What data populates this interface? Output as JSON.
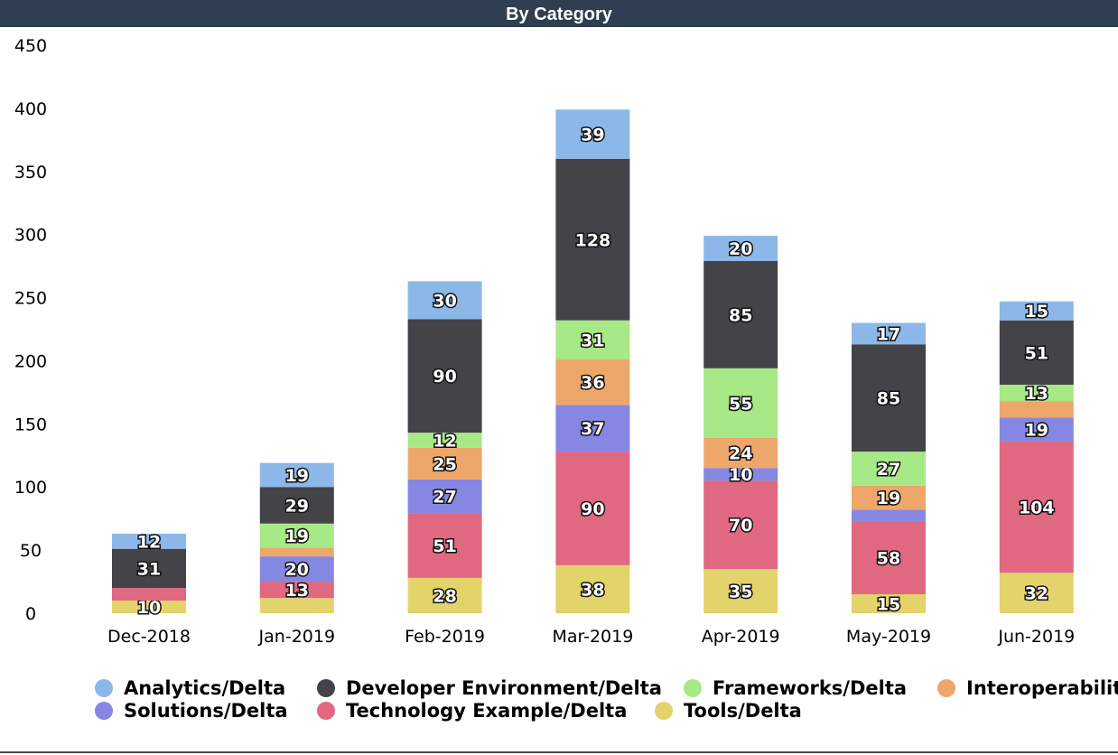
{
  "header": {
    "title": "By Category"
  },
  "chart_data": {
    "type": "bar",
    "stacked": true,
    "title": "By Category",
    "categories": [
      "Dec-2018",
      "Jan-2019",
      "Feb-2019",
      "Mar-2019",
      "Apr-2019",
      "May-2019",
      "Jun-2019"
    ],
    "ylim": [
      0,
      450
    ],
    "yticks": [
      0,
      50,
      100,
      150,
      200,
      250,
      300,
      350,
      400,
      450
    ],
    "legend_position": "bottom",
    "series": [
      {
        "name": "Tools/Delta",
        "color": "#e3d36b",
        "values": [
          10,
          12,
          28,
          38,
          35,
          15,
          32
        ],
        "labels": [
          "10",
          "",
          "28",
          "38",
          "35",
          "15",
          "32"
        ]
      },
      {
        "name": "Technology Example/Delta",
        "color": "#e06880",
        "values": [
          10,
          13,
          51,
          90,
          70,
          58,
          104
        ],
        "labels": [
          "",
          "13",
          "51",
          "90",
          "70",
          "58",
          "104"
        ]
      },
      {
        "name": "Solutions/Delta",
        "color": "#8587e3",
        "values": [
          0,
          20,
          27,
          37,
          10,
          9,
          19
        ],
        "labels": [
          "",
          "20",
          "27",
          "37",
          "10",
          "",
          "19"
        ]
      },
      {
        "name": "Interoperability/Delta",
        "color": "#eea76a",
        "values": [
          0,
          7,
          25,
          36,
          24,
          19,
          13
        ],
        "labels": [
          "",
          "",
          "25",
          "36",
          "24",
          "19",
          ""
        ]
      },
      {
        "name": "Frameworks/Delta",
        "color": "#a7e887",
        "values": [
          0,
          19,
          12,
          31,
          55,
          27,
          13
        ],
        "labels": [
          "",
          "19",
          "12",
          "31",
          "55",
          "27",
          "13"
        ]
      },
      {
        "name": "Developer Environment/Delta",
        "color": "#434348",
        "values": [
          31,
          29,
          90,
          128,
          85,
          85,
          51
        ],
        "labels": [
          "31",
          "29",
          "90",
          "128",
          "85",
          "85",
          "51"
        ]
      },
      {
        "name": "Analytics/Delta",
        "color": "#8bb8e8",
        "values": [
          12,
          19,
          30,
          39,
          20,
          17,
          15
        ],
        "labels": [
          "12",
          "19",
          "30",
          "39",
          "20",
          "17",
          "15"
        ]
      }
    ],
    "legend_order": [
      "Analytics/Delta",
      "Developer Environment/Delta",
      "Frameworks/Delta",
      "Interoperability/Delta",
      "Solutions/Delta",
      "Technology Example/Delta",
      "Tools/Delta"
    ]
  }
}
